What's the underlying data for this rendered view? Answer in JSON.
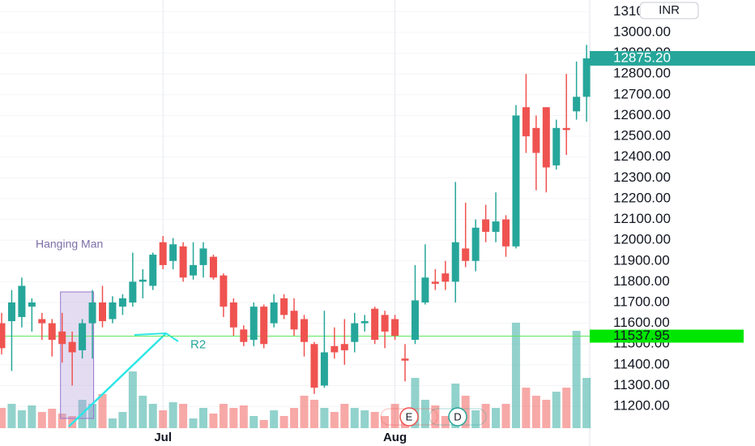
{
  "chart_data": {
    "type": "candlestick",
    "categories": [
      null,
      null,
      null,
      null,
      null,
      null,
      null,
      null,
      null,
      null,
      null,
      null,
      null,
      null,
      null,
      null,
      "Jul",
      null,
      null,
      null,
      null,
      null,
      null,
      null,
      null,
      null,
      null,
      null,
      null,
      null,
      null,
      null,
      null,
      null,
      null,
      null,
      null,
      null,
      null,
      "Aug",
      null,
      null,
      null,
      null,
      null,
      null,
      null,
      null,
      null,
      null,
      null,
      null,
      null,
      null,
      null,
      null,
      null,
      null,
      null
    ],
    "open": [
      11600,
      11610,
      11630,
      11680,
      11620,
      11600,
      11560,
      11510,
      11470,
      11600,
      11700,
      11620,
      11680,
      11700,
      11800,
      11780,
      11990,
      11900,
      11970,
      11830,
      11880,
      11920,
      11830,
      11700,
      11570,
      11520,
      11680,
      11600,
      11720,
      11660,
      11620,
      11500,
      11300,
      11490,
      11500,
      11510,
      11600,
      11670,
      11640,
      11620,
      11430,
      11520,
      11700,
      11800,
      11840,
      11800,
      11960,
      11900,
      12100,
      12040,
      12100,
      11970,
      12640,
      12540,
      12640,
      12360,
      12540,
      12620,
      12690
    ],
    "high": [
      11650,
      11760,
      11820,
      11720,
      11650,
      11620,
      11650,
      11560,
      11620,
      11760,
      11780,
      11730,
      11740,
      11940,
      11860,
      11940,
      12020,
      12010,
      11990,
      11990,
      11990,
      11930,
      11840,
      11720,
      11590,
      11700,
      11690,
      11740,
      11740,
      11720,
      11640,
      11510,
      11660,
      11580,
      11620,
      11650,
      11640,
      11680,
      11660,
      11640,
      11500,
      11880,
      11980,
      11860,
      11900,
      12280,
      12180,
      12100,
      12170,
      12230,
      12120,
      12650,
      12800,
      12600,
      12640,
      12580,
      12800,
      12860,
      12940
    ],
    "low": [
      11450,
      11370,
      11580,
      11560,
      11520,
      11440,
      11410,
      11300,
      11430,
      11430,
      11580,
      11600,
      11640,
      11680,
      11720,
      11760,
      11860,
      11860,
      11800,
      11810,
      11820,
      11810,
      11630,
      11540,
      11490,
      11490,
      11480,
      11580,
      11620,
      11540,
      11440,
      11260,
      11290,
      11430,
      11400,
      11460,
      11560,
      11500,
      11480,
      11520,
      11320,
      11500,
      11690,
      11760,
      11760,
      11700,
      11870,
      11850,
      11990,
      11990,
      11920,
      11960,
      12420,
      12240,
      12230,
      12340,
      12410,
      12580,
      12570
    ],
    "close": [
      11480,
      11700,
      11780,
      11700,
      11600,
      11520,
      11500,
      11460,
      11600,
      11700,
      11610,
      11700,
      11720,
      11800,
      11810,
      11930,
      11880,
      11980,
      11820,
      11880,
      11960,
      11820,
      11680,
      11580,
      11510,
      11680,
      11500,
      11700,
      11640,
      11570,
      11510,
      11290,
      11460,
      11460,
      11470,
      11600,
      11610,
      11520,
      11560,
      11540,
      11420,
      11710,
      11820,
      11790,
      11800,
      11990,
      11900,
      12060,
      12040,
      12090,
      11970,
      12600,
      12500,
      12420,
      12350,
      12540,
      12530,
      12690,
      12875.2
    ],
    "volume": [
      25,
      30,
      22,
      28,
      20,
      24,
      18,
      15,
      35,
      30,
      42,
      12,
      20,
      70,
      40,
      30,
      22,
      32,
      30,
      12,
      25,
      18,
      30,
      25,
      28,
      15,
      10,
      22,
      15,
      25,
      40,
      35,
      25,
      20,
      30,
      25,
      22,
      20,
      15,
      30,
      20,
      62,
      35,
      28,
      15,
      55,
      40,
      22,
      30,
      25,
      30,
      130,
      50,
      40,
      35,
      45,
      50,
      120,
      62
    ],
    "up_color": "#26a69a",
    "down_color": "#ef5350",
    "ylim": [
      11095,
      13156
    ],
    "yticks": [
      {
        "value": 11200,
        "label": "11200.00"
      },
      {
        "value": 11300,
        "label": "11300.00"
      },
      {
        "value": 11400,
        "label": "11400.00"
      },
      {
        "value": 11500,
        "label": "11500.00"
      },
      {
        "value": 11600,
        "label": "11600.00"
      },
      {
        "value": 11700,
        "label": "11700.00"
      },
      {
        "value": 11800,
        "label": "11800.00"
      },
      {
        "value": 11900,
        "label": "11900.00"
      },
      {
        "value": 12000,
        "label": "12000.00"
      },
      {
        "value": 12100,
        "label": "12100.00"
      },
      {
        "value": 12200,
        "label": "12200.00"
      },
      {
        "value": 12300,
        "label": "12300.00"
      },
      {
        "value": 12400,
        "label": "12400.00"
      },
      {
        "value": 12500,
        "label": "12500.00"
      },
      {
        "value": 12600,
        "label": "12600.00"
      },
      {
        "value": 12700,
        "label": "12700.00"
      },
      {
        "value": 12800,
        "label": "12800.00"
      },
      {
        "value": 12900,
        "label": "12900.00"
      },
      {
        "value": 13000,
        "label": "13000.00"
      },
      {
        "value": 13100,
        "label": "13100.00"
      }
    ],
    "currency": "INR",
    "last_price": {
      "value": 12875.2,
      "label": "12875.20"
    },
    "level": 11537.95,
    "level_name": "R2",
    "pattern_label": "Hanging Man",
    "event_badges": [
      "E",
      "D"
    ]
  }
}
